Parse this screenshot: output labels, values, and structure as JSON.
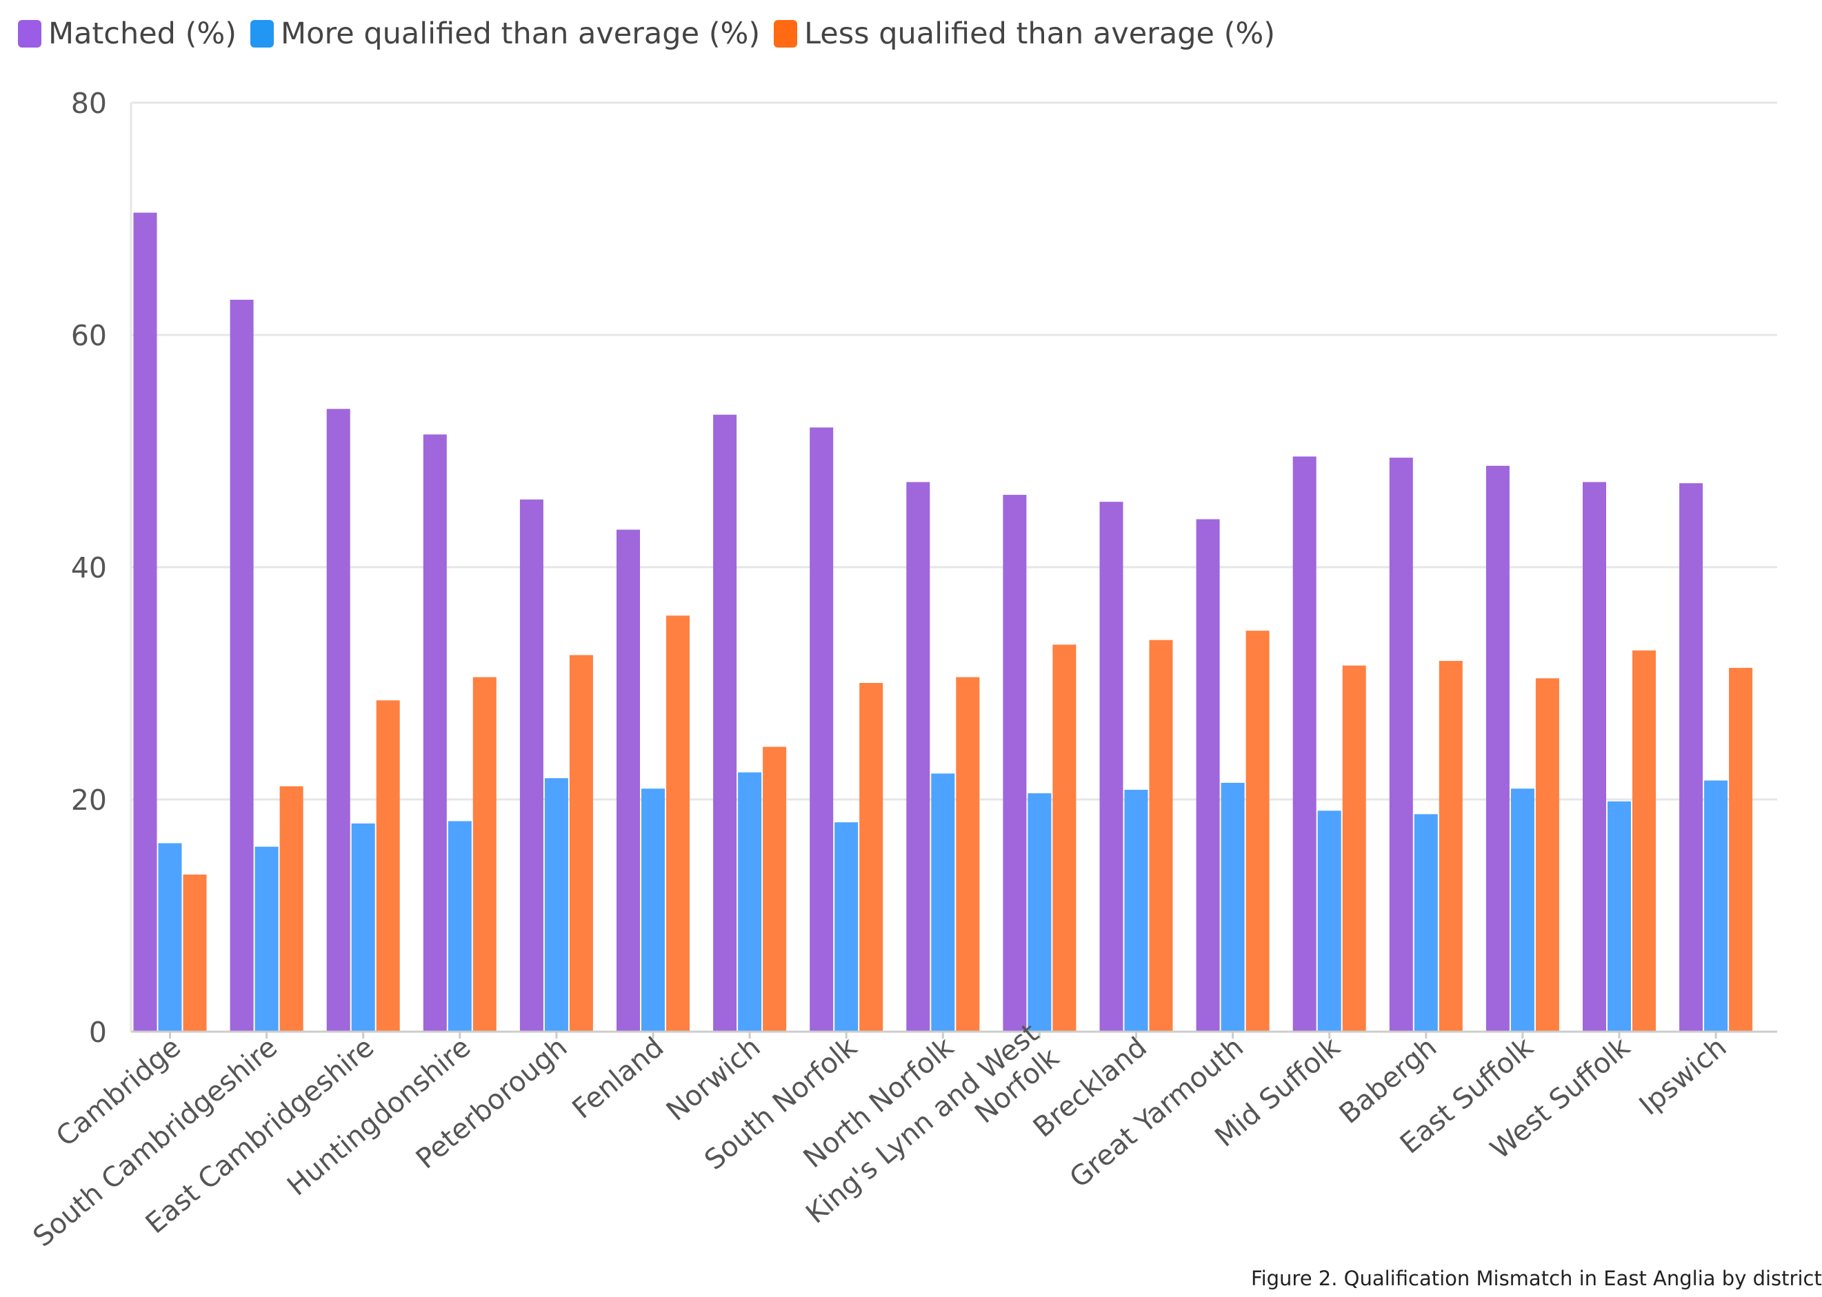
{
  "chart_data": {
    "type": "bar",
    "title": "",
    "xlabel": "",
    "ylabel": "",
    "ylim": [
      0,
      80
    ],
    "yticks": [
      0,
      20,
      40,
      60,
      80
    ],
    "grid": true,
    "legend_position": "top-left",
    "categories": [
      "Cambridge",
      "South Cambridgeshire",
      "East Cambridgeshire",
      "Huntingdonshire",
      "Peterborough",
      "Fenland",
      "Norwich",
      "South Norfolk",
      "North Norfolk",
      "King's Lynn and West Norfolk",
      "Breckland",
      "Great Yarmouth",
      "Mid Suffolk",
      "Babergh",
      "East Suffolk",
      "West Suffolk",
      "Ipswich"
    ],
    "series": [
      {
        "name": "Matched (%)",
        "color": "#a066dc",
        "values": [
          70.5,
          63.0,
          53.6,
          51.4,
          45.8,
          43.2,
          53.1,
          52.0,
          47.3,
          46.2,
          45.6,
          44.1,
          49.5,
          49.4,
          48.7,
          47.3,
          47.2
        ]
      },
      {
        "name": "More qualified than average (%)",
        "color": "#4da3ff",
        "values": [
          16.2,
          15.9,
          17.9,
          18.1,
          21.8,
          20.9,
          22.3,
          18.0,
          22.2,
          20.5,
          20.8,
          21.4,
          19.0,
          18.7,
          20.9,
          19.8,
          21.6
        ]
      },
      {
        "name": "Less qualified than average (%)",
        "color": "#ff8040",
        "values": [
          13.5,
          21.1,
          28.5,
          30.5,
          32.4,
          35.8,
          24.5,
          30.0,
          30.5,
          33.3,
          33.7,
          34.5,
          31.5,
          31.9,
          30.4,
          32.8,
          31.3
        ]
      }
    ]
  },
  "legend": {
    "matched": "Matched (%)",
    "more": "More qualified than average (%)",
    "less": "Less qualified than average (%)"
  },
  "caption": "Figure 2. Qualification Mismatch in East Anglia by district"
}
